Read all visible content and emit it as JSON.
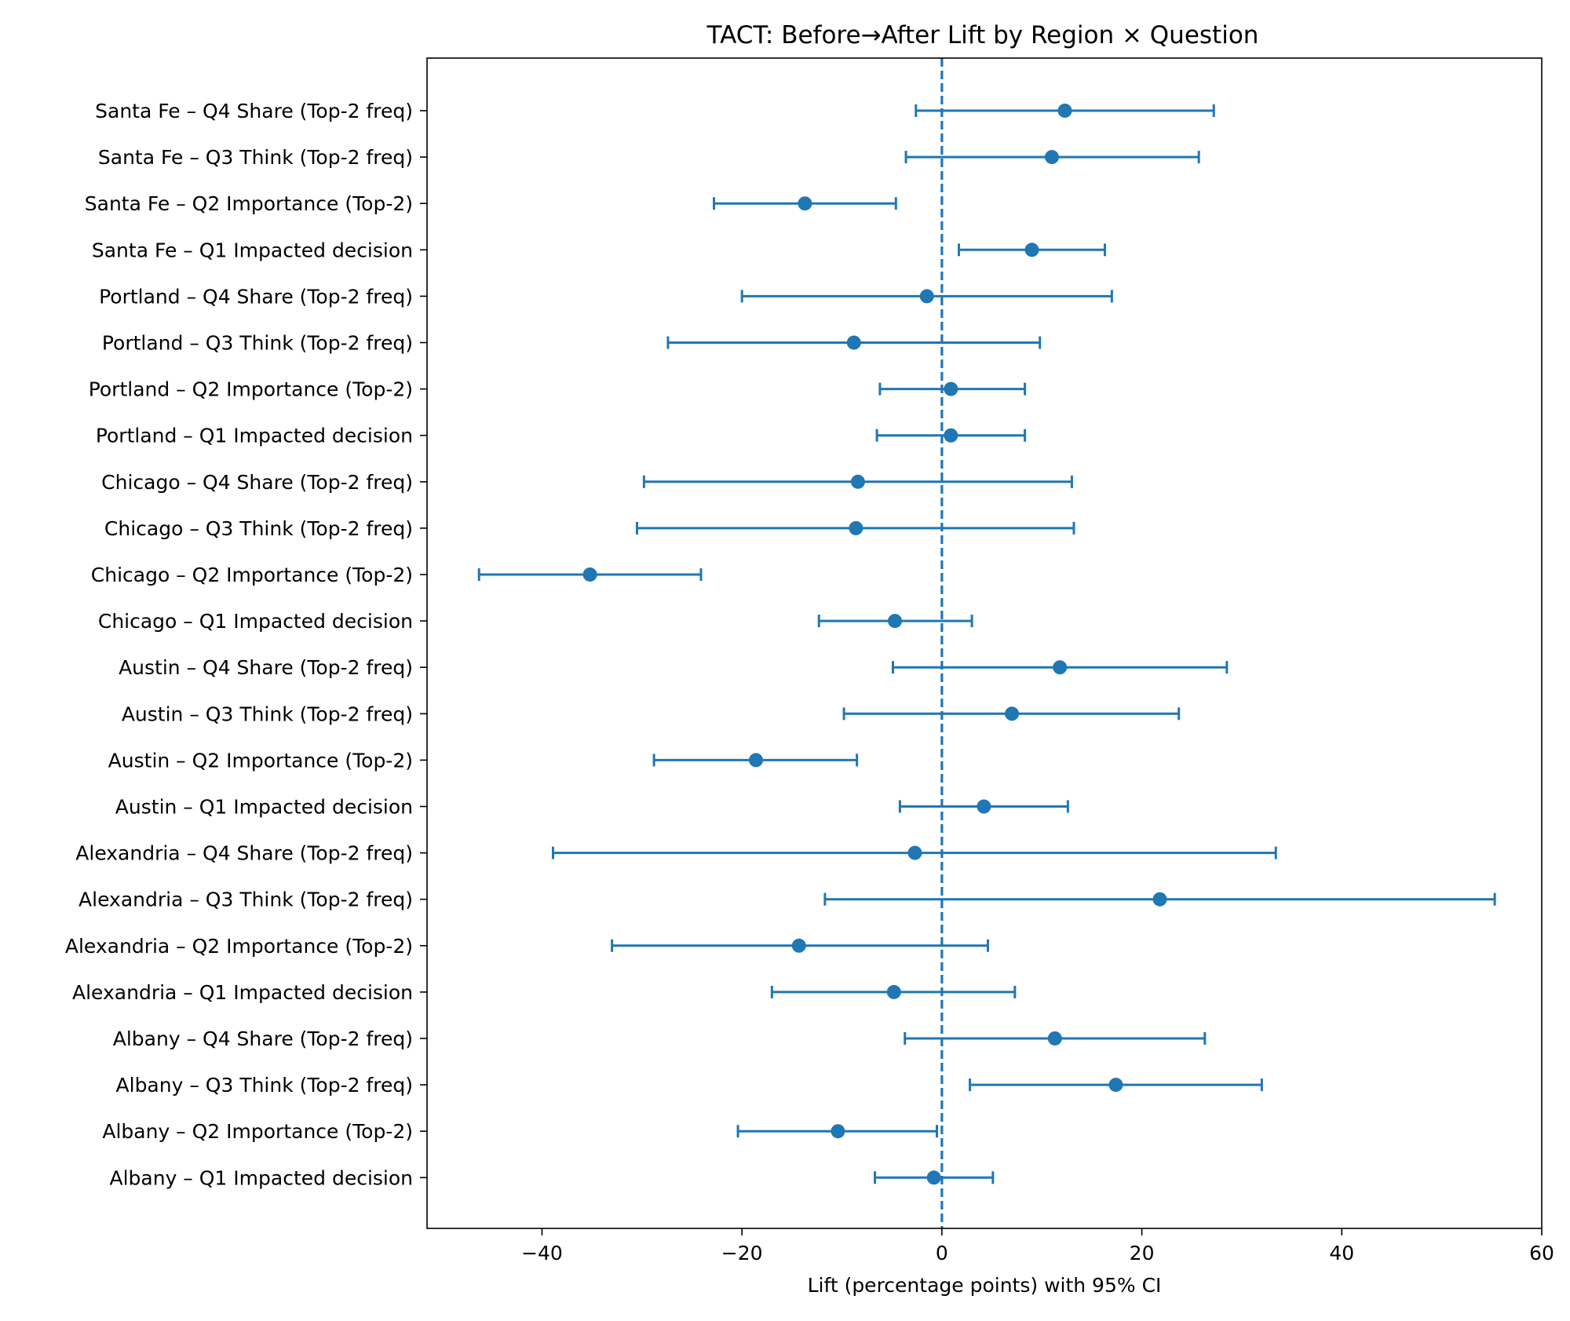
{
  "chart_data": {
    "type": "scatter",
    "title": "TACT: Before→After Lift by Region × Question",
    "xlabel": "Lift (percentage points) with 95% CI",
    "ylabel": "",
    "xlim": [
      -51.5,
      60
    ],
    "xticks": [
      -40,
      -20,
      0,
      20,
      40,
      60
    ],
    "xtick_labels": [
      "−40",
      "−20",
      "0",
      "20",
      "40",
      "60"
    ],
    "reference_line": {
      "x": 0,
      "style": "dashed"
    },
    "grid": false,
    "legend": "none",
    "colors": {
      "series": "#1f77b4",
      "axis": "#000000"
    },
    "rows": [
      {
        "label": "Santa Fe – Q4 Share (Top-2 freq)",
        "estimate": 12.3,
        "lower": -2.6,
        "upper": 27.2
      },
      {
        "label": "Santa Fe – Q3 Think (Top-2 freq)",
        "estimate": 11.0,
        "lower": -3.6,
        "upper": 25.7
      },
      {
        "label": "Santa Fe – Q2 Importance (Top-2)",
        "estimate": -13.7,
        "lower": -22.8,
        "upper": -4.6
      },
      {
        "label": "Santa Fe – Q1 Impacted decision",
        "estimate": 9.0,
        "lower": 1.7,
        "upper": 16.3
      },
      {
        "label": "Portland – Q4 Share (Top-2 freq)",
        "estimate": -1.5,
        "lower": -20.0,
        "upper": 17.0
      },
      {
        "label": "Portland – Q3 Think (Top-2 freq)",
        "estimate": -8.8,
        "lower": -27.4,
        "upper": 9.8
      },
      {
        "label": "Portland – Q2 Importance (Top-2)",
        "estimate": 0.9,
        "lower": -6.2,
        "upper": 8.3
      },
      {
        "label": "Portland – Q1 Impacted decision",
        "estimate": 0.9,
        "lower": -6.5,
        "upper": 8.3
      },
      {
        "label": "Chicago – Q4 Share (Top-2 freq)",
        "estimate": -8.4,
        "lower": -29.8,
        "upper": 13.0
      },
      {
        "label": "Chicago – Q3 Think (Top-2 freq)",
        "estimate": -8.6,
        "lower": -30.5,
        "upper": 13.2
      },
      {
        "label": "Chicago – Q2 Importance (Top-2)",
        "estimate": -35.2,
        "lower": -46.3,
        "upper": -24.1
      },
      {
        "label": "Chicago – Q1 Impacted decision",
        "estimate": -4.7,
        "lower": -12.3,
        "upper": 3.0
      },
      {
        "label": "Austin – Q4 Share (Top-2 freq)",
        "estimate": 11.8,
        "lower": -4.9,
        "upper": 28.5
      },
      {
        "label": "Austin – Q3 Think (Top-2 freq)",
        "estimate": 7.0,
        "lower": -9.8,
        "upper": 23.7
      },
      {
        "label": "Austin – Q2 Importance (Top-2)",
        "estimate": -18.6,
        "lower": -28.8,
        "upper": -8.5
      },
      {
        "label": "Austin – Q1 Impacted decision",
        "estimate": 4.2,
        "lower": -4.2,
        "upper": 12.6
      },
      {
        "label": "Alexandria – Q4 Share (Top-2 freq)",
        "estimate": -2.7,
        "lower": -38.9,
        "upper": 33.4
      },
      {
        "label": "Alexandria – Q3 Think (Top-2 freq)",
        "estimate": 21.8,
        "lower": -11.7,
        "upper": 55.3
      },
      {
        "label": "Alexandria – Q2 Importance (Top-2)",
        "estimate": -14.3,
        "lower": -33.0,
        "upper": 4.6
      },
      {
        "label": "Alexandria – Q1 Impacted decision",
        "estimate": -4.8,
        "lower": -17.0,
        "upper": 7.3
      },
      {
        "label": "Albany – Q4 Share (Top-2 freq)",
        "estimate": 11.3,
        "lower": -3.7,
        "upper": 26.3
      },
      {
        "label": "Albany – Q3 Think (Top-2 freq)",
        "estimate": 17.4,
        "lower": 2.8,
        "upper": 32.0
      },
      {
        "label": "Albany – Q2 Importance (Top-2)",
        "estimate": -10.4,
        "lower": -20.4,
        "upper": -0.5
      },
      {
        "label": "Albany – Q1 Impacted decision",
        "estimate": -0.8,
        "lower": -6.7,
        "upper": 5.1
      }
    ]
  }
}
